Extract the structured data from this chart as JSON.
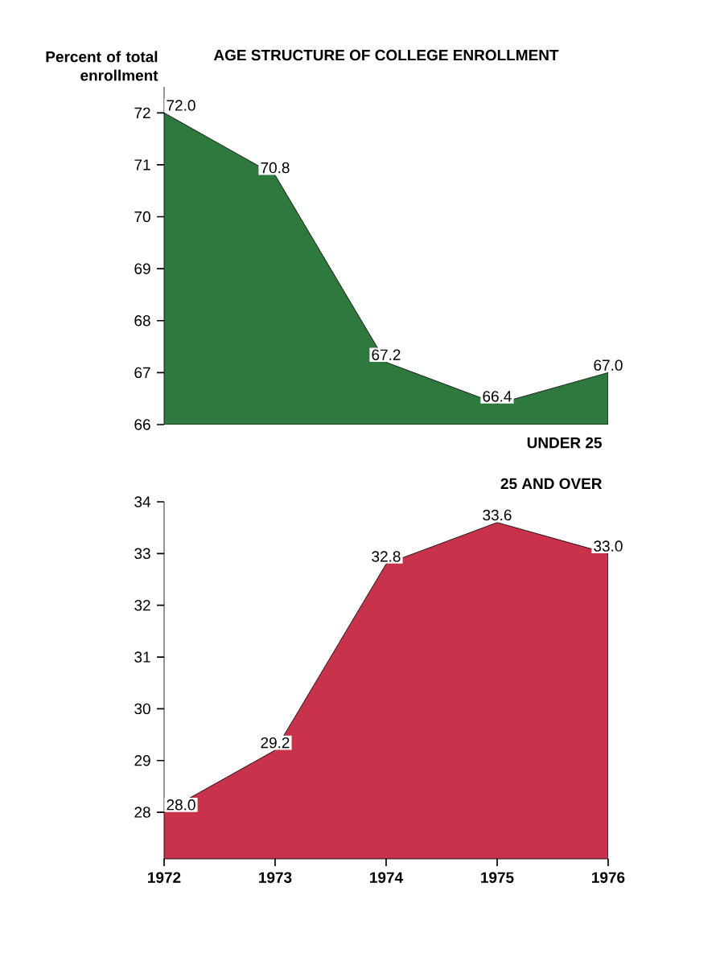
{
  "chart_data": [
    {
      "type": "area",
      "title": "AGE STRUCTURE OF COLLEGE ENROLLMENT",
      "ylabel": "Percent of total enrollment",
      "x": [
        1972,
        1973,
        1974,
        1975,
        1976
      ],
      "xlim": [
        1972,
        1976
      ],
      "ylim": [
        66,
        72.5
      ],
      "yticks": [
        66,
        67,
        68,
        69,
        70,
        71,
        72
      ],
      "tick_labels": "y",
      "series": [
        {
          "name": "UNDER 25",
          "color": "#2e7a3e",
          "values": [
            72.0,
            70.8,
            67.2,
            66.4,
            67.0
          ],
          "value_labels": [
            "72.0",
            "70.8",
            "67.2",
            "66.4",
            "67.0"
          ]
        }
      ]
    },
    {
      "type": "area",
      "x": [
        1972,
        1973,
        1974,
        1975,
        1976
      ],
      "xlim": [
        1972,
        1976
      ],
      "xticks": [
        1972,
        1973,
        1974,
        1975,
        1976
      ],
      "ylim": [
        27.1,
        34
      ],
      "yticks": [
        28,
        29,
        30,
        31,
        32,
        33,
        34
      ],
      "series": [
        {
          "name": "25 AND OVER",
          "color": "#c8324a",
          "values": [
            28.0,
            29.2,
            32.8,
            33.6,
            33.0
          ],
          "value_labels": [
            "28.0",
            "29.2",
            "32.8",
            "33.6",
            "33.0"
          ]
        }
      ]
    }
  ]
}
